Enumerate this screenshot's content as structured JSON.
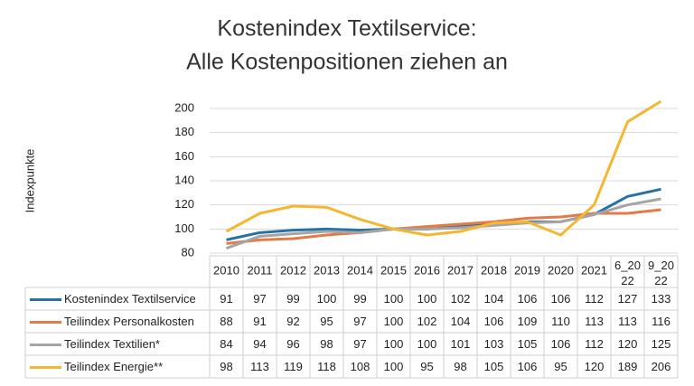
{
  "chart_data": {
    "type": "line",
    "title": [
      "Kostenindex Textilservice:",
      "Alle Kostenpositionen ziehen an"
    ],
    "y_label": "Indexpunkte",
    "categories": [
      "2010",
      "2011",
      "2012",
      "2013",
      "2014",
      "2015",
      "2016",
      "2017",
      "2018",
      "2019",
      "2020",
      "2021",
      "6_2022",
      "9_2022"
    ],
    "series": [
      {
        "name": "Kostenindex Textilservice",
        "color": "#2671a6",
        "values": [
          91,
          97,
          99,
          100,
          99,
          100,
          100,
          102,
          104,
          106,
          106,
          112,
          127,
          133
        ]
      },
      {
        "name": "Teilindex Personalkosten",
        "color": "#e47b47",
        "values": [
          88,
          91,
          92,
          95,
          97,
          100,
          102,
          104,
          106,
          109,
          110,
          113,
          113,
          116
        ]
      },
      {
        "name": "Teilindex Textilien*",
        "color": "#a5a5a5",
        "values": [
          84,
          94,
          96,
          98,
          97,
          100,
          100,
          101,
          103,
          105,
          106,
          112,
          120,
          125
        ]
      },
      {
        "name": "Teilindex Energie**",
        "color": "#f5b731",
        "values": [
          98,
          113,
          119,
          118,
          108,
          100,
          95,
          98,
          105,
          106,
          95,
          120,
          189,
          206
        ]
      }
    ],
    "ylim": [
      80,
      200
    ],
    "yticks": [
      80,
      100,
      120,
      140,
      160,
      180,
      200
    ],
    "grid": true,
    "data_table": true
  }
}
